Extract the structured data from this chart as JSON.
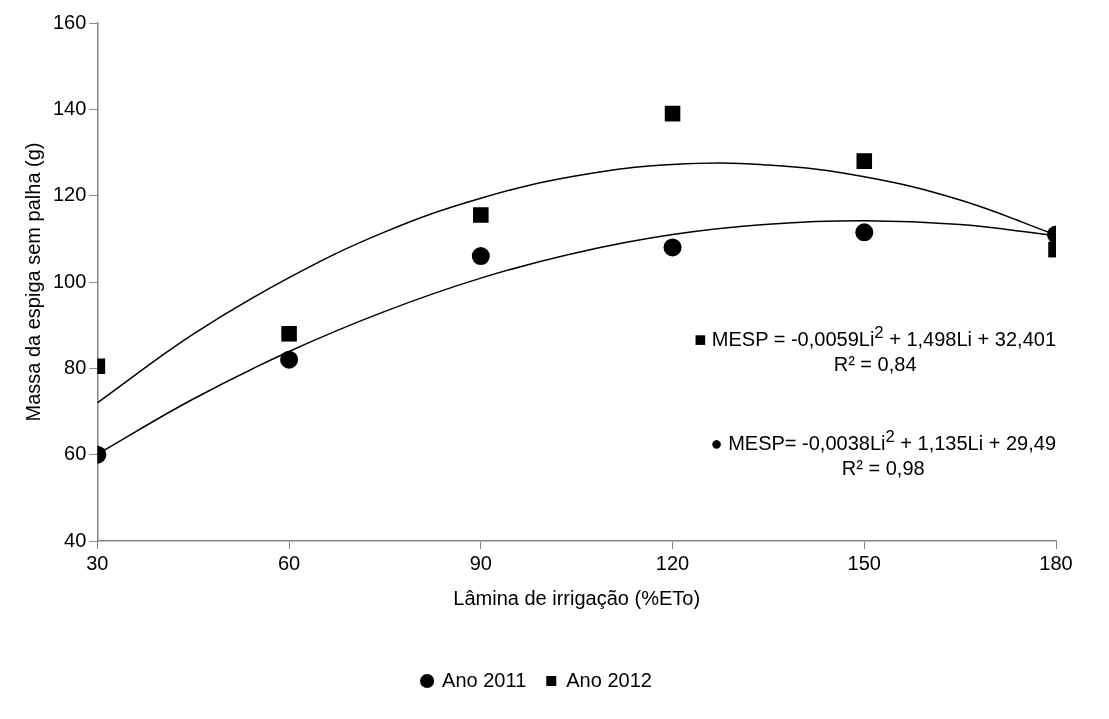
{
  "chart_data": {
    "type": "scatter",
    "xlabel": "Lâmina de irrigação (%ETo)",
    "ylabel": "Massa da espiga sem palha (g)",
    "x": [
      30,
      60,
      90,
      120,
      150,
      180
    ],
    "series": [
      {
        "name": "Ano 2011",
        "marker": "circle",
        "color": "#000000",
        "values": [
          60,
          82,
          106,
          108,
          111.5,
          111
        ]
      },
      {
        "name": "Ano 2012",
        "marker": "square",
        "color": "#000000",
        "values": [
          80.5,
          88,
          115.5,
          139,
          128,
          107.5
        ]
      },
      {
        "type": "line",
        "color": "#000000",
        "x": [
          30,
          45,
          60,
          75,
          90,
          105,
          120,
          135,
          150,
          165,
          180
        ],
        "values": [
          60.1,
          72.9,
          83.9,
          93.2,
          100.9,
          106.8,
          111,
          113.4,
          114.2,
          113.3,
          110.7
        ]
      },
      {
        "type": "line",
        "color": "#000000",
        "x": [
          30,
          45,
          60,
          75,
          90,
          105,
          120,
          135,
          150,
          165,
          180
        ],
        "values": [
          72,
          87.9,
          101,
          111.6,
          119.4,
          124.6,
          127.2,
          127.1,
          124.4,
          119,
          110.9
        ]
      }
    ],
    "xlim": [
      30,
      180
    ],
    "xticks": [
      30,
      60,
      90,
      120,
      150,
      180
    ],
    "ylim": [
      40,
      160
    ],
    "yticks": [
      40,
      60,
      80,
      100,
      120,
      140,
      160
    ],
    "grid": false,
    "legend": "bottom",
    "line_style": "solid",
    "annotations": [
      "■ MESP = -0,0059Li$^{2}$ + 1,498Li + 32,401\nR² = 0,84",
      "● MESP= -0,0038Li$^{2}$ + 1,135Li + 29,49\nR² = 0,98"
    ]
  }
}
